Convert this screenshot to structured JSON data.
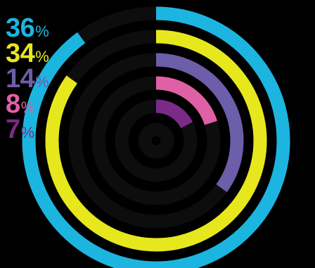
{
  "chart_data": {
    "type": "radial-bar",
    "unit": "%",
    "max": 40,
    "series": [
      {
        "label": "36",
        "value": 36,
        "color": "#1cb5e0"
      },
      {
        "label": "34",
        "value": 34,
        "color": "#e7e71d"
      },
      {
        "label": "14",
        "value": 14,
        "color": "#6c5ea8"
      },
      {
        "label": "8",
        "value": 8,
        "color": "#e060a6"
      },
      {
        "label": "7",
        "value": 7,
        "color": "#7a2b87"
      }
    ],
    "track_color": "#0d0d0d",
    "background": "#000000"
  }
}
